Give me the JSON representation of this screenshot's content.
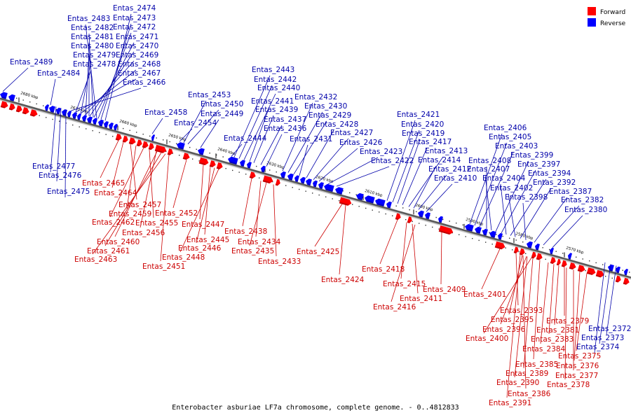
{
  "legend": [
    {
      "label": "Forward",
      "color": "#ff0000"
    },
    {
      "label": "Reverse",
      "color": "#0000ff"
    }
  ],
  "caption": "Enterobacter asburiae LF7a chromosome, complete genome. - 0..4812833",
  "ticks": [
    "2680 kbp",
    "2670 kbp",
    "2660 kbp",
    "2650 kbp",
    "2640 kbp",
    "2630 kbp",
    "2620 kbp",
    "2610 kbp",
    "2600 kbp",
    "2590 kbp",
    "2580 kbp",
    "2570 kbp"
  ],
  "reverse_labels": [
    "Entas_2474",
    "Entas_2473",
    "Entas_2483",
    "Entas_2472",
    "Entas_2482",
    "Entas_2471",
    "Entas_2481",
    "Entas_2470",
    "Entas_2480",
    "Entas_2469",
    "Entas_2479",
    "Entas_2489",
    "Entas_2468",
    "Entas_2478",
    "Entas_2467",
    "Entas_2484",
    "Entas_2466",
    "Entas_2477",
    "Entas_2476",
    "Entas_2475",
    "Entas_2458",
    "Entas_2454",
    "Entas_2453",
    "Entas_2450",
    "Entas_2449",
    "Entas_2444",
    "Entas_2443",
    "Entas_2442",
    "Entas_2440",
    "Entas_2441",
    "Entas_2439",
    "Entas_2437",
    "Entas_2436",
    "Entas_2432",
    "Entas_2430",
    "Entas_2429",
    "Entas_2431",
    "Entas_2428",
    "Entas_2427",
    "Entas_2426",
    "Entas_2423",
    "Entas_2422",
    "Entas_2421",
    "Entas_2420",
    "Entas_2419",
    "Entas_2417",
    "Entas_2413",
    "Entas_2414",
    "Entas_2412",
    "Entas_2410",
    "Entas_2406",
    "Entas_2405",
    "Entas_2403",
    "Entas_2408",
    "Entas_2407",
    "Entas_2399",
    "Entas_2397",
    "Entas_2404",
    "Entas_2394",
    "Entas_2402",
    "Entas_2392",
    "Entas_2398",
    "Entas_2387",
    "Entas_2382",
    "Entas_2380",
    "Entas_2372",
    "Entas_2373",
    "Entas_2374"
  ],
  "forward_labels": [
    "Entas_2465",
    "Entas_2464",
    "Entas_2457",
    "Entas_2459",
    "Entas_2462",
    "Entas_2455",
    "Entas_2456",
    "Entas_2460",
    "Entas_2461",
    "Entas_2463",
    "Entas_2452",
    "Entas_2447",
    "Entas_2445",
    "Entas_2446",
    "Entas_2448",
    "Entas_2451",
    "Entas_2438",
    "Entas_2434",
    "Entas_2435",
    "Entas_2433",
    "Entas_2425",
    "Entas_2424",
    "Entas_2418",
    "Entas_2415",
    "Entas_2411",
    "Entas_2416",
    "Entas_2409",
    "Entas_2401",
    "Entas_2393",
    "Entas_2395",
    "Entas_2396",
    "Entas_2400",
    "Entas_2379",
    "Entas_2381",
    "Entas_2383",
    "Entas_2384",
    "Entas_2375",
    "Entas_2385",
    "Entas_2376",
    "Entas_2389",
    "Entas_2377",
    "Entas_2390",
    "Entas_2378",
    "Entas_2386",
    "Entas_2391"
  ]
}
